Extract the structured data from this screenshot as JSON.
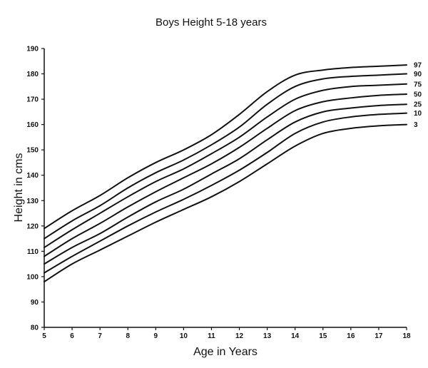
{
  "chart_data": {
    "type": "line",
    "title": "Boys Height 5-18 years",
    "xlabel": "Age in Years",
    "ylabel": "Height in cms",
    "xlim": [
      5,
      18
    ],
    "ylim": [
      80,
      190
    ],
    "xticks": [
      "5",
      "6",
      "7",
      "8",
      "9",
      "10",
      "11",
      "12",
      "13",
      "14",
      "15",
      "16",
      "17",
      "18"
    ],
    "yticks": [
      "80",
      "90",
      "100",
      "110",
      "120",
      "130",
      "140",
      "150",
      "160",
      "170",
      "180",
      "190"
    ],
    "grid": false,
    "legend": "right-end-labels",
    "x": [
      5,
      6,
      7,
      8,
      9,
      10,
      11,
      12,
      13,
      14,
      15,
      16,
      17,
      18
    ],
    "series": [
      {
        "name": "97",
        "values": [
          119,
          126,
          132,
          139,
          145,
          150,
          156,
          164,
          173,
          179.5,
          181.5,
          182.5,
          183,
          183.5
        ]
      },
      {
        "name": "90",
        "values": [
          115,
          122,
          128,
          135,
          141,
          146,
          152,
          159,
          168,
          175,
          178,
          179,
          179.5,
          180
        ]
      },
      {
        "name": "75",
        "values": [
          111.5,
          118.5,
          125,
          131.5,
          137.5,
          142.5,
          148.5,
          155,
          163,
          170,
          173.5,
          175,
          175.5,
          176
        ]
      },
      {
        "name": "50",
        "values": [
          108,
          115,
          121,
          127.5,
          133.5,
          139,
          144.5,
          151,
          158.5,
          165.5,
          169,
          170.5,
          171.5,
          172
        ]
      },
      {
        "name": "25",
        "values": [
          105,
          111.5,
          117,
          123.5,
          129.5,
          134.5,
          140.5,
          146.5,
          154,
          161,
          165,
          166.5,
          167.5,
          168
        ]
      },
      {
        "name": "10",
        "values": [
          101.5,
          108,
          114,
          120,
          125.5,
          130.5,
          136,
          142,
          149,
          156.5,
          161,
          163,
          164,
          164.5
        ]
      },
      {
        "name": "3",
        "values": [
          98,
          105,
          110.5,
          116,
          121.5,
          126.5,
          131.5,
          137.5,
          144.5,
          151.5,
          156.5,
          158.5,
          159.5,
          160
        ]
      }
    ]
  }
}
